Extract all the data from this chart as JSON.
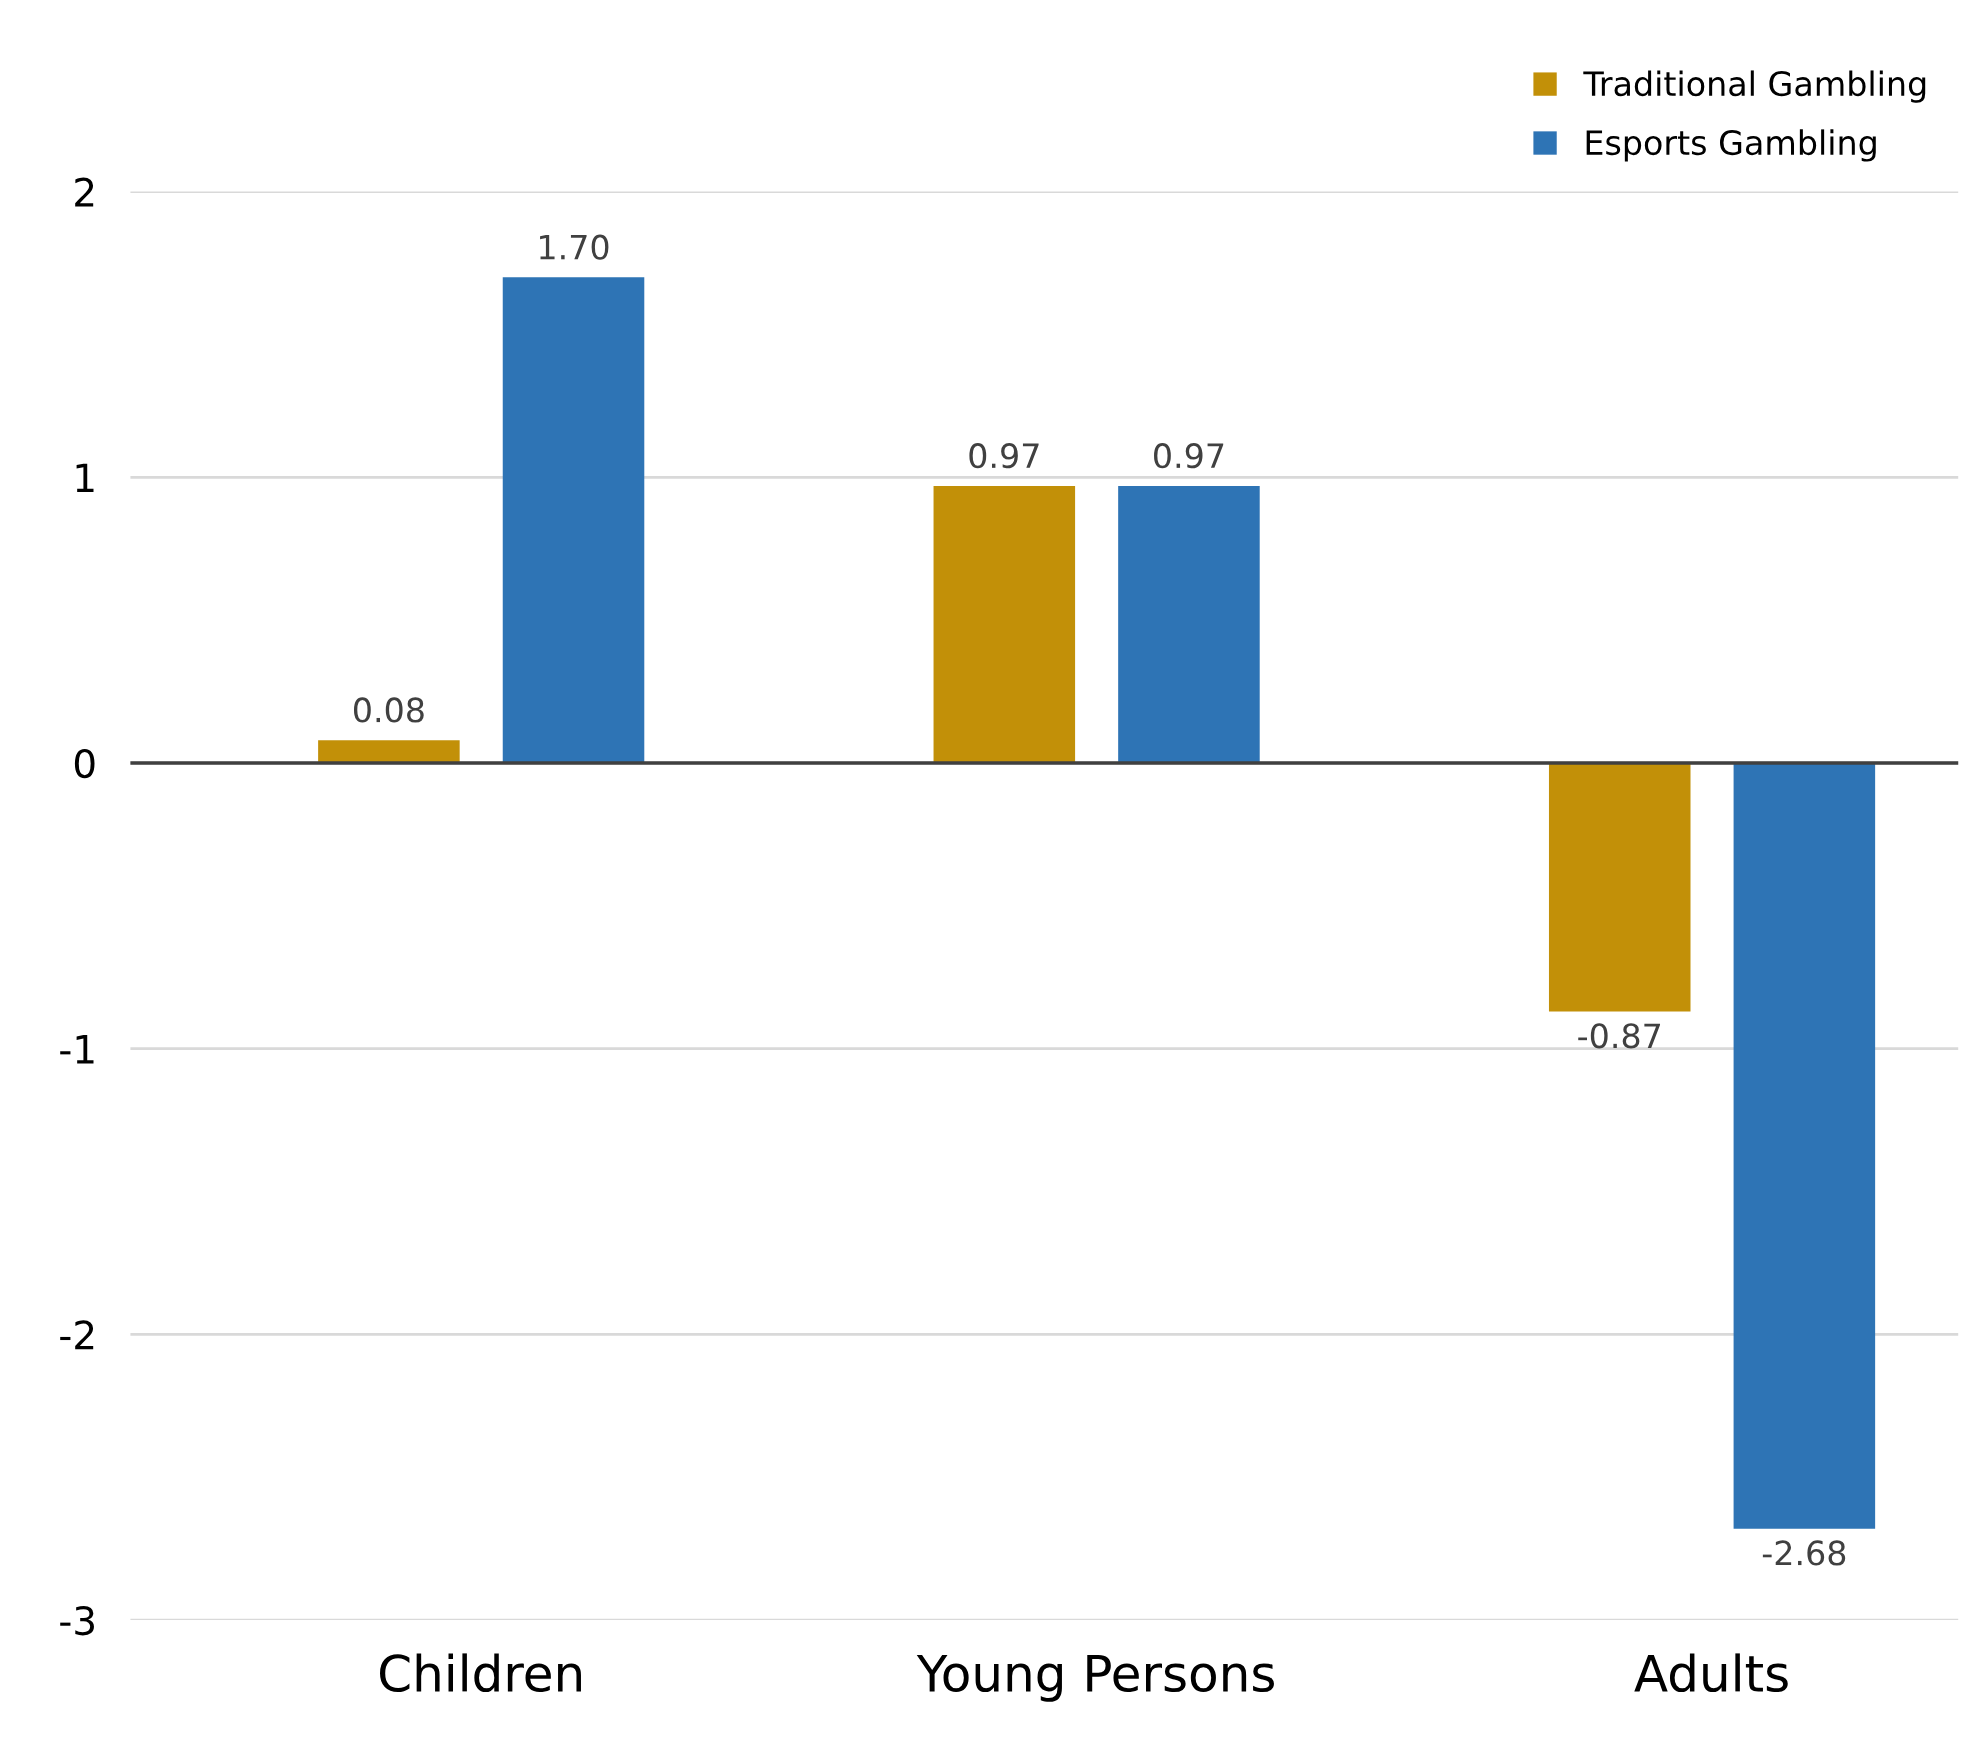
{
  "chart_data": {
    "type": "bar",
    "categories": [
      "Children",
      "Young Persons",
      "Adults"
    ],
    "series": [
      {
        "name": "Traditional Gambling",
        "color": "#c29008",
        "values": [
          0.08,
          0.97,
          -0.87
        ],
        "value_labels": [
          "0.08",
          "0.97",
          "-0.87"
        ]
      },
      {
        "name": "Esports Gambling",
        "color": "#2e74b5",
        "values": [
          1.7,
          0.97,
          -2.68
        ],
        "value_labels": [
          "1.70",
          "0.97",
          "-2.68"
        ]
      }
    ],
    "ylim": [
      -3,
      2
    ],
    "yticks": [
      -3,
      -2,
      -1,
      0,
      1,
      2
    ],
    "grid": "y",
    "legend": "top right"
  }
}
